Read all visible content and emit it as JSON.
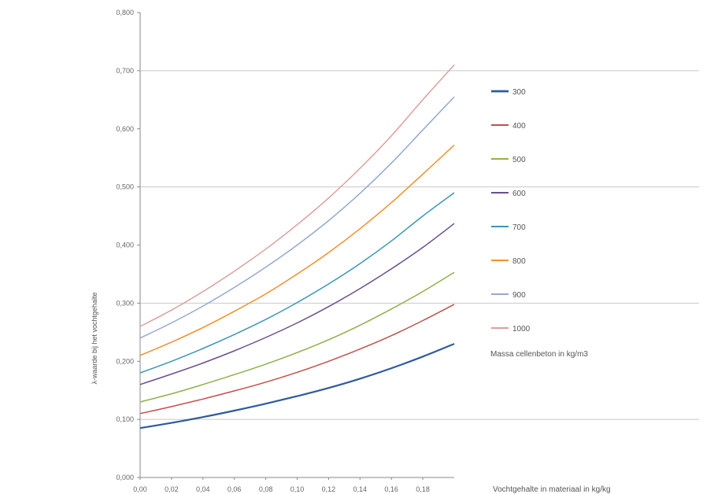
{
  "chart_data": {
    "type": "line",
    "title": "",
    "xlabel": "Vochtgehalte in materiaal in kg/kg",
    "ylabel": "λ-waarde bij het vochtgehalte",
    "legend_title": "Massa cellenbeton in kg/m3",
    "legend_position": "right",
    "grid": "horizontal",
    "xlim": [
      0.0,
      0.2
    ],
    "ylim": [
      0.0,
      0.8
    ],
    "x_tick_labels": [
      "0,00",
      "0,02",
      "0,04",
      "0,06",
      "0,08",
      "0,10",
      "0,12",
      "0,14",
      "0,16",
      "0,18"
    ],
    "y_tick_labels": [
      "0,000",
      "0,100",
      "0,200",
      "0,300",
      "0,400",
      "0,500",
      "0,600",
      "0,700",
      "0,800"
    ],
    "x": [
      0.0,
      0.02,
      0.04,
      0.06,
      0.08,
      0.1,
      0.12,
      0.14,
      0.16,
      0.18,
      0.2
    ],
    "series": [
      {
        "name": "300",
        "color": "#2e5a9e",
        "width": 2.2,
        "values": [
          0.085,
          0.094,
          0.104,
          0.115,
          0.127,
          0.14,
          0.154,
          0.17,
          0.188,
          0.208,
          0.23
        ]
      },
      {
        "name": "400",
        "color": "#c0504d",
        "width": 1.5,
        "values": [
          0.11,
          0.122,
          0.135,
          0.149,
          0.164,
          0.181,
          0.2,
          0.221,
          0.244,
          0.27,
          0.298
        ]
      },
      {
        "name": "500",
        "color": "#8fb04a",
        "width": 1.5,
        "values": [
          0.13,
          0.144,
          0.16,
          0.177,
          0.195,
          0.215,
          0.237,
          0.262,
          0.29,
          0.32,
          0.353
        ]
      },
      {
        "name": "600",
        "color": "#6a4f8c",
        "width": 1.5,
        "values": [
          0.16,
          0.178,
          0.197,
          0.218,
          0.241,
          0.266,
          0.294,
          0.325,
          0.359,
          0.396,
          0.437
        ]
      },
      {
        "name": "700",
        "color": "#3a97b4",
        "width": 1.5,
        "values": [
          0.18,
          0.2,
          0.222,
          0.246,
          0.272,
          0.301,
          0.333,
          0.368,
          0.407,
          0.45,
          0.49
        ]
      },
      {
        "name": "800",
        "color": "#f0902a",
        "width": 1.5,
        "values": [
          0.21,
          0.233,
          0.258,
          0.286,
          0.316,
          0.35,
          0.387,
          0.428,
          0.473,
          0.522,
          0.572
        ]
      },
      {
        "name": "900",
        "color": "#95a9cf",
        "width": 1.5,
        "values": [
          0.24,
          0.266,
          0.295,
          0.327,
          0.362,
          0.4,
          0.442,
          0.489,
          0.541,
          0.598,
          0.655
        ]
      },
      {
        "name": "1000",
        "color": "#dca09c",
        "width": 1.5,
        "values": [
          0.26,
          0.288,
          0.32,
          0.355,
          0.393,
          0.435,
          0.481,
          0.532,
          0.588,
          0.65,
          0.71
        ]
      }
    ]
  }
}
